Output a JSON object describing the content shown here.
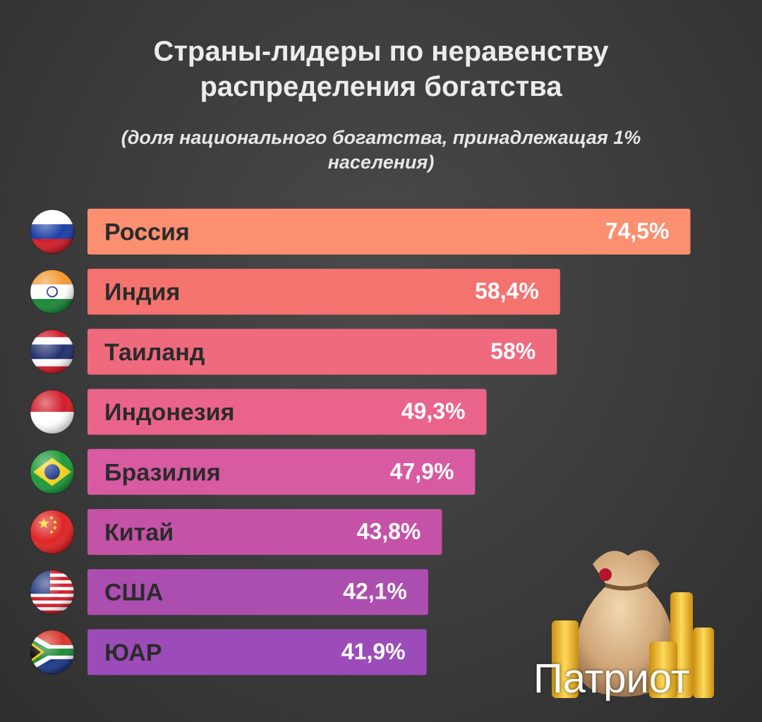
{
  "chart_data": {
    "type": "bar",
    "orientation": "horizontal",
    "title_lines": [
      "Страны-лидеры по неравенству",
      "распределения богатства"
    ],
    "subtitle_lines": [
      "(доля национального богатства, принадлежащая 1%",
      "населения)"
    ],
    "categories": [
      "Россия",
      "Индия",
      "Таиланд",
      "Индонезия",
      "Бразилия",
      "Китай",
      "США",
      "ЮАР"
    ],
    "values": [
      74.5,
      58.4,
      58,
      49.3,
      47.9,
      43.8,
      42.1,
      41.9
    ],
    "value_labels": [
      "74,5%",
      "58,4%",
      "58%",
      "49,3%",
      "47,9%",
      "43,8%",
      "42,1%",
      "41,9%"
    ],
    "unit": "%",
    "colors": [
      "#fc8f6f",
      "#f5736e",
      "#f06a7d",
      "#e9638b",
      "#d85aa1",
      "#c452a6",
      "#ac4db0",
      "#9b4cb8"
    ],
    "flags": [
      "russia-flag",
      "india-flag",
      "thailand-flag",
      "indonesia-flag",
      "brazil-flag",
      "china-flag",
      "usa-flag",
      "south-africa-flag"
    ]
  },
  "brand": {
    "name": "Патриот"
  }
}
